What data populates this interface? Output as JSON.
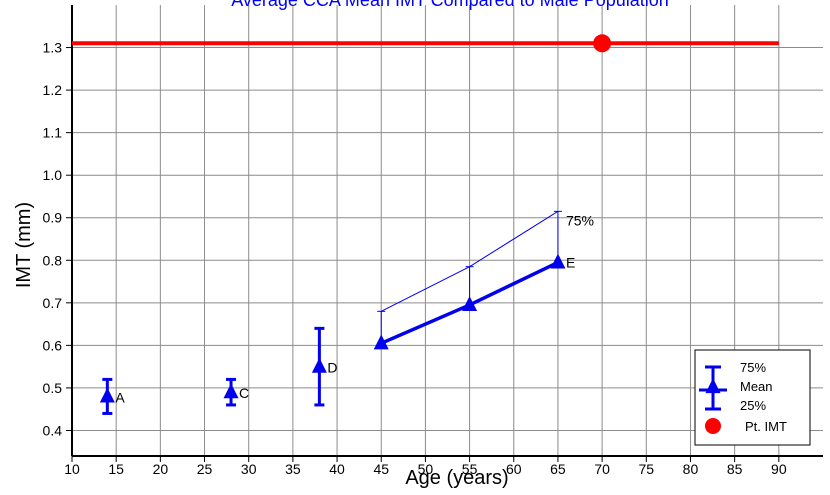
{
  "chart_data": {
    "type": "line",
    "title": "Average CCA Mean IMT Compared to Male Population",
    "xlabel": "Age (years)",
    "ylabel": "IMT (mm)",
    "xlim": [
      10,
      95
    ],
    "ylim": [
      0.34,
      1.4
    ],
    "x_ticks": [
      10,
      15,
      20,
      25,
      30,
      35,
      40,
      45,
      50,
      55,
      60,
      65,
      70,
      75,
      80,
      85,
      90
    ],
    "y_ticks": [
      0.4,
      0.5,
      0.6,
      0.7,
      0.8,
      0.9,
      1.0,
      1.1,
      1.2,
      1.3
    ],
    "grid": true,
    "colors": {
      "population": "#0000ee",
      "patient": "#ff0000",
      "title": "#0000ff"
    },
    "error_points": [
      {
        "label": "A",
        "x": 14,
        "mean": 0.48,
        "low": 0.44,
        "high": 0.52
      },
      {
        "label": "C",
        "x": 28,
        "mean": 0.49,
        "low": 0.46,
        "high": 0.52
      },
      {
        "label": "D",
        "x": 38,
        "mean": 0.55,
        "low": 0.46,
        "high": 0.64
      }
    ],
    "series": [
      {
        "name": "Mean",
        "x": [
          45,
          55,
          65
        ],
        "values": [
          0.605,
          0.695,
          0.795
        ],
        "end_label": "E"
      },
      {
        "name": "75%",
        "x": [
          45,
          55,
          65
        ],
        "values": [
          0.68,
          0.785,
          0.915
        ],
        "end_label": "75%"
      }
    ],
    "patient": {
      "name": "Pt. IMT",
      "x": 70,
      "value": 1.31,
      "line_x": [
        10,
        90
      ]
    },
    "legend": {
      "position": "bottom-right",
      "entries": [
        {
          "label": "75%",
          "symbol": "upper-bar"
        },
        {
          "label": "Mean",
          "symbol": "triangle"
        },
        {
          "label": "25%",
          "symbol": "lower-bar"
        },
        {
          "label": "Pt. IMT",
          "symbol": "circle"
        }
      ]
    }
  }
}
